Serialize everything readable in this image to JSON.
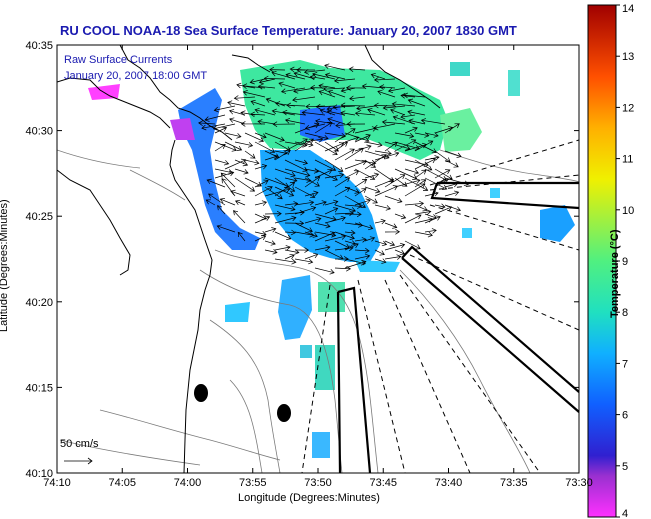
{
  "title": "RU COOL  NOAA-18  Sea Surface Temperature:  January 20, 2007 1830 GMT",
  "legend": {
    "line1": "Raw Surface Currents",
    "line2": "January 20, 2007 18:00 GMT"
  },
  "axes": {
    "xlabel": "Longitude (Degrees:Minutes)",
    "ylabel": "Latitude (Degrees:Minutes)",
    "x_ticks": [
      "74:10",
      "74:05",
      "74:00",
      "73:55",
      "73:50",
      "73:45",
      "73:40",
      "73:35",
      "73:30"
    ],
    "y_ticks": [
      "40:35",
      "40:30",
      "40:25",
      "40:20",
      "40:15",
      "40:10"
    ]
  },
  "colorbar": {
    "label": "Temperature (°C)",
    "min": 4,
    "max": 14,
    "ticks": [
      "14",
      "13",
      "12",
      "11",
      "10",
      "9",
      "8",
      "7",
      "6",
      "5",
      "4"
    ]
  },
  "scale": {
    "label": "50 cm/s"
  },
  "colors": {
    "title": "#1a1ab0",
    "arrows": "#000000",
    "coast": "#000000",
    "bathymetry": "#7a7a7a"
  }
}
